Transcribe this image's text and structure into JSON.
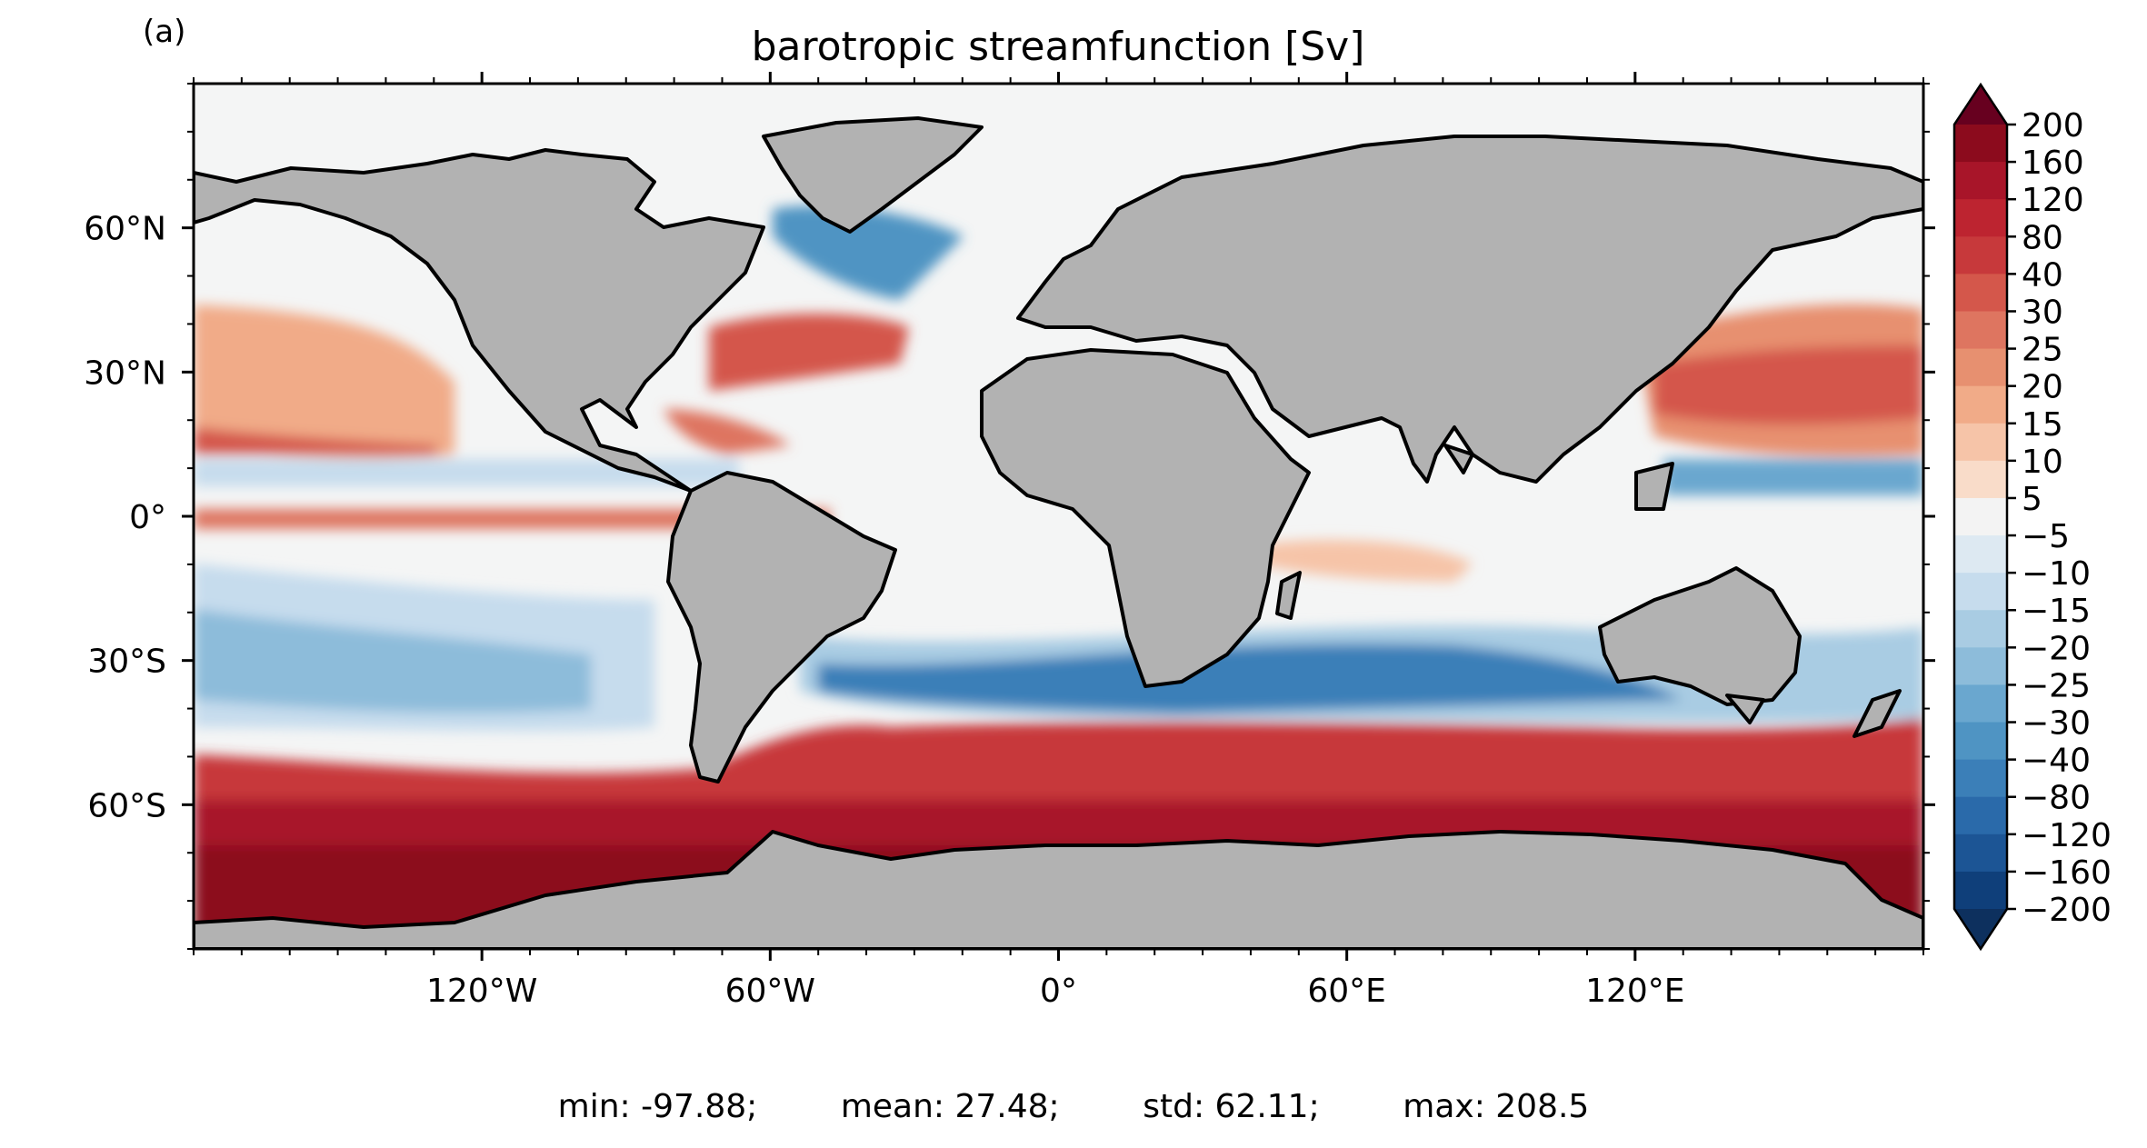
{
  "panel_label": "(a)",
  "title": "barotropic streamfunction [Sv]",
  "lat_ticks": [
    {
      "lat": 60,
      "label": "60°N"
    },
    {
      "lat": 30,
      "label": "30°N"
    },
    {
      "lat": 0,
      "label": "0°"
    },
    {
      "lat": -30,
      "label": "30°S"
    },
    {
      "lat": -60,
      "label": "60°S"
    }
  ],
  "lon_ticks": [
    {
      "lon": -120,
      "label": "120°W"
    },
    {
      "lon": -60,
      "label": "60°W"
    },
    {
      "lon": 0,
      "label": "0°"
    },
    {
      "lon": 60,
      "label": "60°E"
    },
    {
      "lon": 120,
      "label": "120°E"
    }
  ],
  "map_extent": {
    "lon": [
      -180,
      180
    ],
    "lat": [
      -90,
      90
    ]
  },
  "colorbar": {
    "extend": "both",
    "labels": [
      "200",
      "160",
      "120",
      "80",
      "40",
      "30",
      "25",
      "20",
      "15",
      "10",
      "5",
      "−5",
      "−10",
      "−15",
      "−20",
      "−25",
      "−30",
      "−40",
      "−80",
      "−120",
      "−160",
      "−200"
    ],
    "colors": [
      "#8c0b1d",
      "#a81529",
      "#bd2430",
      "#c7393b",
      "#d4574b",
      "#de7560",
      "#e79070",
      "#f1ab88",
      "#f6c4a8",
      "#f9dcc9",
      "#f3f3f3",
      "#dde9f2",
      "#c6dced",
      "#a9cce3",
      "#8dbcda",
      "#6aa7cf",
      "#4f94c3",
      "#3b7fb8",
      "#2a6aaa",
      "#1c5595",
      "#0f3f7a"
    ],
    "over_color": "#67001f",
    "under_color": "#0d305e"
  },
  "stats": {
    "min": "min: -97.88;",
    "mean": "mean: 27.48;",
    "std": "std: 62.11;",
    "max": "max: 208.5"
  },
  "colors": {
    "land": "#b2b2b2",
    "ocean_neutral": "#f4f5f5",
    "coast": "#000000"
  }
}
